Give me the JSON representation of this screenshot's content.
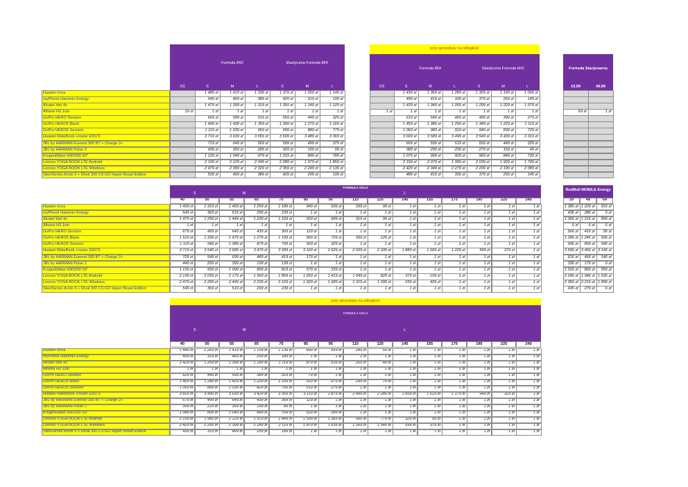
{
  "products": [
    "Huawei nova",
    "myPhone Hammer Energy",
    "Alcatel Idol 4s",
    "Allview H3 Join",
    "GoPro HERO Session",
    "GoPro HERO5 Black",
    "GoPro HERO5 Session",
    "Huawei MateBook +router E5573",
    "JBL by HARMAN Everest 300 BT + Charge 2+",
    "JBL by HARMAN Pulse 2",
    "Kruger&Matz KM0250 50\"",
    "Lenovo YOGA BOOK LTE Android",
    "Lenovo YOGA BOOK LTE Windows",
    "SteelSeries Arctis 5 + Rival 300 CS:GO Hyper Beast Edition"
  ],
  "table1": {
    "groups": [
      "Formuła MIX",
      "Elastyczna Formuła MIX"
    ],
    "columns": [
      "XS",
      "S",
      "M",
      "L",
      "S",
      "M",
      "L"
    ],
    "rows": [
      [
        null,
        "1 489 zł",
        "1 419 zł",
        "1 339 zł",
        "1 379 zł",
        "1 259 zł",
        "1 149 zł"
      ],
      [
        null,
        "549 zł",
        "469 zł",
        "389 zł",
        "429 zł",
        "319 zł",
        "199 zł"
      ],
      [
        null,
        "1 479 zł",
        "1 399 zł",
        "1 319 zł",
        "1 359 zł",
        "1 249 zł",
        "1 129 zł"
      ],
      [
        "19 zł",
        "1 zł",
        "1 zł",
        "1 zł",
        "1 zł",
        "1 zł",
        "1 zł"
      ],
      [
        null,
        "669 zł",
        "599 zł",
        "519 zł",
        "559 zł",
        "449 zł",
        "329 zł"
      ],
      [
        null,
        "1 499 zł",
        "1 439 zł",
        "1 359 zł",
        "1 399 zł",
        "1 279 zł",
        "1 169 zł"
      ],
      [
        null,
        "1 119 zł",
        "1 039 zł",
        "969 zł",
        "999 zł",
        "889 zł",
        "779 zł"
      ],
      [
        null,
        "3 719 zł",
        "3 639 zł",
        "3 559 zł",
        "3 599 zł",
        "3 489 zł",
        "3 369 zł"
      ],
      [
        null,
        "719 zł",
        "649 zł",
        "569 zł",
        "599 zł",
        "499 zł",
        "379 zł"
      ],
      [
        null,
        "439 zł",
        "359 zł",
        "289 zł",
        "329 zł",
        "199 zł",
        "99 zł"
      ],
      [
        null,
        "1 129 zł",
        "1 049 zł",
        "979 zł",
        "1 019 zł",
        "899 zł",
        "789 zł"
      ],
      [
        null,
        "2 199 zł",
        "2 129 zł",
        "2 049 zł",
        "2 089 zł",
        "1 979 zł",
        "1 859 zł"
      ],
      [
        null,
        "2 479 zł",
        "2 399 zł",
        "2 329 zł",
        "2 359 zł",
        "2 249 zł",
        "2 139 zł"
      ],
      [
        null,
        "539 zł",
        "469 zł",
        "389 zł",
        "429 zł",
        "299 zł",
        "199 zł"
      ]
    ]
  },
  "table2": {
    "banner": "przy sprzedaży na odległość",
    "groups": [
      "Formuła MIX",
      "Elastyczna Formuła MIX"
    ],
    "columns": [
      "XS",
      "S",
      "M",
      "L",
      "S",
      "M",
      "L"
    ],
    "rows": [
      [
        null,
        "1 439 zł",
        "1 369 zł",
        "1 289 zł",
        "1 329 zł",
        "1 199 zł",
        "1 099 zł"
      ],
      [
        null,
        "499 zł",
        "419 zł",
        "339 zł",
        "379 zł",
        "269 zł",
        "149 zł"
      ],
      [
        null,
        "1 429 zł",
        "1 349 zł",
        "1 269 zł",
        "1 299 zł",
        "1 229 zł",
        "1 079 zł"
      ],
      [
        "1 zł",
        "1 zł",
        "1 zł",
        "1 zł",
        "1 zł",
        "1 zł",
        "1 zł"
      ],
      [
        null,
        "619 zł",
        "549 zł",
        "469 zł",
        "499 zł",
        "399 zł",
        "279 zł"
      ],
      [
        null,
        "1 459 zł",
        "1 389 zł",
        "1 299 zł",
        "1 349 zł",
        "1 229 zł",
        "1 119 zł"
      ],
      [
        null,
        "1 069 zł",
        "989 zł",
        "919 zł",
        "949 zł",
        "839 zł",
        "729 zł"
      ],
      [
        null,
        "3 669 zł",
        "3 589 zł",
        "3 499 zł",
        "3 549 zł",
        "3 439 zł",
        "3 319 zł"
      ],
      [
        null,
        "669 zł",
        "599 zł",
        "519 zł",
        "559 zł",
        "449 zł",
        "329 zł"
      ],
      [
        null,
        "389 zł",
        "299 zł",
        "239 zł",
        "279 zł",
        "159 zł",
        "49 zł"
      ],
      [
        null,
        "1 079 zł",
        "999 zł",
        "929 zł",
        "969 zł",
        "849 zł",
        "739 zł"
      ],
      [
        null,
        "2 159 zł",
        "2 079 zł",
        "1 999 zł",
        "2 039 zł",
        "1 929 zł",
        "1 799 zł"
      ],
      [
        null,
        "2 429 zł",
        "2 349 zł",
        "2 279 zł",
        "2 299 zł",
        "2 199 zł",
        "2 089 zł"
      ],
      [
        null,
        "489 zł",
        "419 zł",
        "339 zł",
        "379 zł",
        "259 zł",
        "149 zł"
      ]
    ]
  },
  "table3": {
    "title": "Formuła Stacjonarna",
    "columns": [
      "19,99",
      "49,99"
    ],
    "rows": [
      [
        null,
        null
      ],
      [
        null,
        null
      ],
      [
        null,
        null
      ],
      [
        "69 zł",
        "1 zł"
      ],
      [
        null,
        null
      ],
      [
        null,
        null
      ],
      [
        null,
        null
      ],
      [
        null,
        null
      ],
      [
        null,
        null
      ],
      [
        null,
        null
      ],
      [
        null,
        null
      ],
      [
        null,
        null
      ],
      [
        null,
        null
      ],
      [
        null,
        null
      ]
    ]
  },
  "table4": {
    "title": "FORMUŁA SOLO",
    "groups": [
      "S",
      "M",
      "L"
    ],
    "columns": [
      "40",
      "50",
      "55",
      "65",
      "75",
      "85",
      "95",
      "115",
      "125",
      "145",
      "155",
      "175",
      "195",
      "225",
      "245"
    ],
    "rows": [
      [
        "1 499 zł",
        "1 319 zł",
        "1 469 zł",
        "1 259 zł",
        "1 189 zł",
        "949 zł",
        "699 zł",
        "339 zł",
        "99 zł",
        "1 zł",
        "1 zł",
        "1 zł",
        "1 zł",
        "1 zł",
        "1 zł"
      ],
      [
        "549 zł",
        "369 zł",
        "519 zł",
        "299 zł",
        "239 zł",
        "1 zł",
        "1 zł",
        "1 zł",
        "1 zł",
        "1 zł",
        "1 zł",
        "1 zł",
        "1 zł",
        "1 zł",
        "1 zł"
      ],
      [
        "1 479 zł",
        "1 299 zł",
        "1 449 zł",
        "1 239 zł",
        "1 169 zł",
        "929 zł",
        "689 zł",
        "319 zł",
        "99 zł",
        "1 zł",
        "1 zł",
        "1 zł",
        "1 zł",
        "1 zł",
        "1 zł"
      ],
      [
        "1 zł",
        "1 zł",
        "1 zł",
        "1 zł",
        "1 zł",
        "1 zł",
        "1 zł",
        "1 zł",
        "1 zł",
        "1 zł",
        "1 zł",
        "1 zł",
        "1 zł",
        "1 zł",
        "1 zł"
      ],
      [
        "679 zł",
        "499 zł",
        "649 zł",
        "439 zł",
        "369 zł",
        "129 zł",
        "1 zł",
        "1 zł",
        "1 zł",
        "1 zł",
        "1 zł",
        "1 zł",
        "1 zł",
        "1 zł",
        "1 zł"
      ],
      [
        "1 519 zł",
        "1 339 zł",
        "1 479 zł",
        "1 279 zł",
        "1 199 zł",
        "969 zł",
        "729 zł",
        "359 zł",
        "129 zł",
        "1 zł",
        "1 zł",
        "1 zł",
        "1 zł",
        "1 zł",
        "1 zł"
      ],
      [
        "1 119 zł",
        "949 zł",
        "1 089 zł",
        "879 zł",
        "799 zł",
        "569 zł",
        "329 zł",
        "1 zł",
        "1 zł",
        "1 zł",
        "1 zł",
        "1 zł",
        "1 zł",
        "1 zł",
        "1 zł"
      ],
      [
        "3 719 zł",
        "3 549 zł",
        "3 689 zł",
        "3 479 zł",
        "3 399 zł",
        "3 169 zł",
        "2 929 zł",
        "2 559 zł",
        "2 339 zł",
        "1 889 zł",
        "1 669 zł",
        "1 229 zł",
        "999 zł",
        "379 zł",
        "1 zł"
      ],
      [
        "729 zł",
        "549 zł",
        "699 zł",
        "489 zł",
        "419 zł",
        "179 zł",
        "1 zł",
        "1 zł",
        "1 zł",
        "1 zł",
        "1 zł",
        "1 zł",
        "1 zł",
        "1 zł",
        "1 zł"
      ],
      [
        "449 zł",
        "269 zł",
        "399 zł",
        "199 zł",
        "139 zł",
        "1 zł",
        "1 zł",
        "1 zł",
        "1 zł",
        "1 zł",
        "1 zł",
        "1 zł",
        "1 zł",
        "1 zł",
        "1 zł"
      ],
      [
        "1 139 zł",
        "959 zł",
        "1 099 zł",
        "899 zł",
        "819 zł",
        "579 zł",
        "339 zł",
        "1 zł",
        "1 zł",
        "1 zł",
        "1 zł",
        "1 zł",
        "1 zł",
        "1 zł",
        "1 zł"
      ],
      [
        "2 199 zł",
        "2 039 zł",
        "2 179 zł",
        "1 969 zł",
        "1 899 zł",
        "1 659 zł",
        "1 419 zł",
        "1 049 zł",
        "829 zł",
        "379 zł",
        "159 zł",
        "1 zł",
        "1 zł",
        "1 zł",
        "1 zł"
      ],
      [
        "2 479 zł",
        "2 299 zł",
        "2 449 zł",
        "2 239 zł",
        "2 169 zł",
        "1 929 zł",
        "1 689 zł",
        "1 319 zł",
        "1 099 zł",
        "659 zł",
        "429 zł",
        "1 zł",
        "1 zł",
        "1 zł",
        "1 zł"
      ],
      [
        "549 zł",
        "369 zł",
        "519 zł",
        "299 zł",
        "239 zł",
        "1 zł",
        "1 zł",
        "1 zł",
        "1 zł",
        "1 zł",
        "1 zł",
        "1 zł",
        "1 zł",
        "1 zł",
        "1 zł"
      ]
    ]
  },
  "table5": {
    "title": "RedBull MOBILE Energy",
    "columns": [
      "29",
      "49",
      "69"
    ],
    "rows": [
      [
        "1 386 zł",
        "1 226 zł",
        "916 zł"
      ],
      [
        "436 zł",
        "286 zł",
        "6 zł"
      ],
      [
        "1 366 zł",
        "1 216 zł",
        "896 zł"
      ],
      [
        "6 zł",
        "6 zł",
        "6 zł"
      ],
      [
        "566 zł",
        "416 zł",
        "96 zł"
      ],
      [
        "1 396 zł",
        "1 246 zł",
        "936 zł"
      ],
      [
        "996 zł",
        "856 zł",
        "546 zł"
      ],
      [
        "3 596 zł",
        "3 456 zł",
        "3 146 zł"
      ],
      [
        "616 zł",
        "466 zł",
        "146 zł"
      ],
      [
        "336 zł",
        "176 zł",
        "6 zł"
      ],
      [
        "1 026 zł",
        "866 zł",
        "556 zł"
      ],
      [
        "2 096 zł",
        "1 946 zł",
        "1 636 zł"
      ],
      [
        "2 366 zł",
        "2 216 zł",
        "1 896 zł"
      ],
      [
        "436 zł",
        "276 zł",
        "6 zł"
      ]
    ]
  },
  "table6": {
    "banner": "przy sprzedaży na odległość",
    "title": "FORMUŁA SOLO",
    "groups": [
      "S",
      "M",
      "L"
    ],
    "columns": [
      "40",
      "50",
      "55",
      "65",
      "75",
      "85",
      "95",
      "115",
      "125",
      "145",
      "155",
      "175",
      "195",
      "225",
      "245"
    ],
    "rows": [
      [
        "1 449 zł",
        "1 269 zł",
        "1 419 zł",
        "1 199 zł",
        "1 139 zł",
        "899 zł",
        "659 zł",
        "289 zł",
        "59 zł",
        "1 zł",
        "1 zł",
        "1 zł",
        "1 zł",
        "1 zł",
        "1 zł"
      ],
      [
        "499 zł",
        "319 zł",
        "469 zł",
        "259 zł",
        "189 zł",
        "1 zł",
        "1 zł",
        "1 zł",
        "1 zł",
        "1 zł",
        "1 zł",
        "1 zł",
        "1 zł",
        "1 zł",
        "1 zł"
      ],
      [
        "1 429 zł",
        "1 259 zł",
        "1 399 zł",
        "1 189 zł",
        "1 119 zł",
        "879 zł",
        "639 zł",
        "269 zł",
        "49 zł",
        "1 zł",
        "1 zł",
        "1 zł",
        "1 zł",
        "1 zł",
        "1 zł"
      ],
      [
        "1 zł",
        "1 zł",
        "1 zł",
        "1 zł",
        "1 zł",
        "1 zł",
        "1 zł",
        "1 zł",
        "1 zł",
        "1 zł",
        "1 zł",
        "1 zł",
        "1 zł",
        "1 zł",
        "1 zł"
      ],
      [
        "629 zł",
        "449 zł",
        "599 zł",
        "389 zł",
        "319 zł",
        "79 zł",
        "1 zł",
        "1 zł",
        "1 zł",
        "1 zł",
        "1 zł",
        "1 zł",
        "1 zł",
        "1 zł",
        "1 zł"
      ],
      [
        "1 469 zł",
        "1 289 zł",
        "1 429 zł",
        "1 229 zł",
        "1 159 zł",
        "919 zł",
        "679 zł",
        "299 zł",
        "79 zł",
        "1 zł",
        "1 zł",
        "1 zł",
        "1 zł",
        "1 zł",
        "1 zł"
      ],
      [
        "1 069 zł",
        "899 zł",
        "1 039 zł",
        "829 zł",
        "759 zł",
        "519 zł",
        "279 zł",
        "1 zł",
        "1 zł",
        "1 zł",
        "1 zł",
        "1 zł",
        "1 zł",
        "1 zł",
        "1 zł"
      ],
      [
        "3 669 zł",
        "3 499 zł",
        "3 639 zł",
        "3 429 zł",
        "3 359 zł",
        "3 119 zł",
        "2 879 zł",
        "2 499 zł",
        "2 289 zł",
        "1 839 zł",
        "1 619 zł",
        "1 179 zł",
        "949 zł",
        "329 zł",
        "1 zł"
      ],
      [
        "679 zł",
        "499 zł",
        "649 zł",
        "439 zł",
        "369 zł",
        "129 zł",
        "1 zł",
        "1 zł",
        "1 zł",
        "1 zł",
        "1 zł",
        "1 zł",
        "1 zł",
        "1 zł",
        "1 zł"
      ],
      [
        "399 zł",
        "219 zł",
        "359 zł",
        "159 zł",
        "89 zł",
        "1 zł",
        "1 zł",
        "1 zł",
        "1 zł",
        "1 zł",
        "1 zł",
        "1 zł",
        "1 zł",
        "1 zł",
        "1 zł"
      ],
      [
        "1 089 zł",
        "899 zł",
        "1 049 zł",
        "849 zł",
        "769 zł",
        "529 zł",
        "289 zł",
        "1 zł",
        "1 zł",
        "1 zł",
        "1 zł",
        "1 zł",
        "1 zł",
        "1 zł",
        "1 zł"
      ],
      [
        "2 159 zł",
        "1 989 zł",
        "2 129 zł",
        "1 919 zł",
        "1 849 zł",
        "1 599 zł",
        "1 369 zł",
        "999 zł",
        "779 zł",
        "329 zł",
        "99 zł",
        "1 zł",
        "1 zł",
        "1 zł",
        "1 zł"
      ],
      [
        "2 429 zł",
        "2 259 zł",
        "2 399 zł",
        "2 189 zł",
        "2 119 zł",
        "1 879 zł",
        "1 639 zł",
        "1 269 zł",
        "1 049 zł",
        "599 zł",
        "379 zł",
        "1 zł",
        "1 zł",
        "1 zł",
        "1 zł"
      ],
      [
        "499 zł",
        "319 zł",
        "469 zł",
        "259 zł",
        "189 zł",
        "1 zł",
        "1 zł",
        "1 zł",
        "1 zł",
        "1 zł",
        "1 zł",
        "1 zł",
        "1 zł",
        "1 zł",
        "1 zł"
      ]
    ]
  }
}
